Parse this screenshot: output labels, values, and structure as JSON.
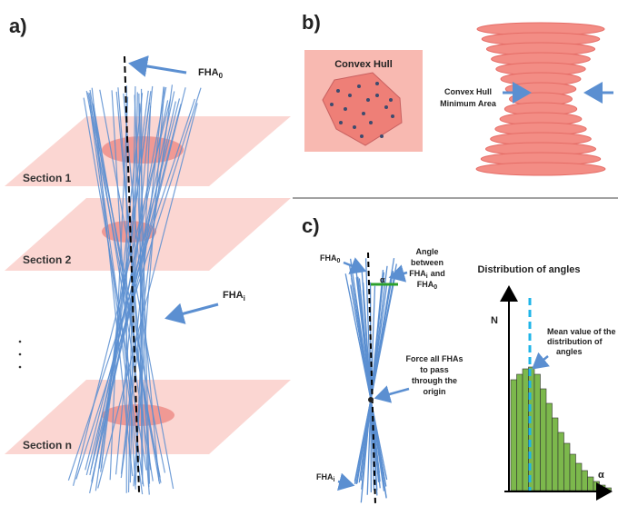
{
  "panel_a": {
    "label": "a)",
    "fha0": {
      "base": "FHA",
      "sub": "0"
    },
    "fhai": {
      "base": "FHA",
      "sub": "i"
    },
    "sections": [
      "Section 1",
      "Section 2",
      "Section n"
    ]
  },
  "panel_b": {
    "label": "b)",
    "hull_title": "Convex Hull",
    "min_area": [
      "Convex Hull",
      "Minimum Area"
    ]
  },
  "panel_c": {
    "label": "c)",
    "fha0": {
      "base": "FHA",
      "sub": "0"
    },
    "fhai": {
      "base": "FHA",
      "sub": "i"
    },
    "angle_label": {
      "line1": "Angle",
      "line2": "between",
      "line3": {
        "base": "FHA",
        "sub": "i",
        "rest": "and"
      },
      "line4": {
        "base": "FHA",
        "sub": "0"
      }
    },
    "alpha_mark": "α",
    "force_label": [
      "Force all FHAs",
      "to pass",
      "through the",
      "origin"
    ],
    "hist_title": "Distribution of angles",
    "y_axis": "N",
    "x_axis": "α",
    "mean_label": [
      "Mean value of the",
      "distribution of",
      "angles"
    ]
  }
}
